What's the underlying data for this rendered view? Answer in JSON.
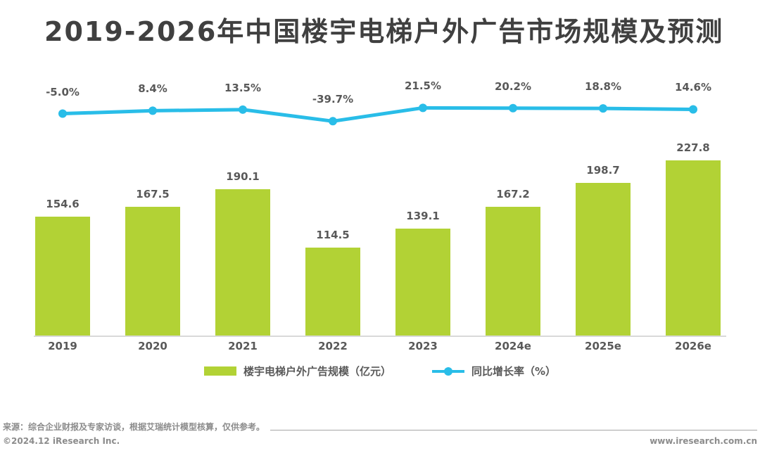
{
  "title": "2019-2026年中国楼宇电梯户外广告市场规模及预测",
  "colors": {
    "bar": "#b2d235",
    "line": "#29bde8",
    "title_text": "#404040",
    "label_text": "#595959",
    "axis_line": "#d9d9d9",
    "footer_text": "#8c8c8c"
  },
  "chart_data": {
    "type": "bar",
    "title": "2019-2026年中国楼宇电梯户外广告市场规模及预测",
    "categories": [
      "2019",
      "2020",
      "2021",
      "2022",
      "2023",
      "2024e",
      "2025e",
      "2026e"
    ],
    "series": [
      {
        "name": "楼宇电梯户外广告规模（亿元）",
        "type": "bar",
        "values": [
          154.6,
          167.5,
          190.1,
          114.5,
          139.1,
          167.2,
          198.7,
          227.8
        ],
        "labels": [
          "154.6",
          "167.5",
          "190.1",
          "114.5",
          "139.1",
          "167.2",
          "198.7",
          "227.8"
        ]
      },
      {
        "name": "同比增长率（%）",
        "type": "line",
        "values": [
          -5.0,
          8.4,
          13.5,
          -39.7,
          21.5,
          20.2,
          18.8,
          14.6
        ],
        "labels": [
          "-5.0%",
          "8.4%",
          "13.5%",
          "-39.7%",
          "21.5%",
          "20.2%",
          "18.8%",
          "14.6%"
        ]
      }
    ],
    "xlabel": "",
    "ylabel": "",
    "ylim_bar": [
      0,
      250
    ],
    "grid": false,
    "legend_position": "bottom"
  },
  "legend": {
    "bar_label": "楼宇电梯户外广告规模（亿元）",
    "line_label": "同比增长率（%）"
  },
  "footer": {
    "note": "来源：综合企业财报及专家访谈，根据艾瑞统计模型核算，仅供参考。",
    "copyright": "©2024.12 iResearch Inc.",
    "website": "www.iresearch.com.cn"
  }
}
